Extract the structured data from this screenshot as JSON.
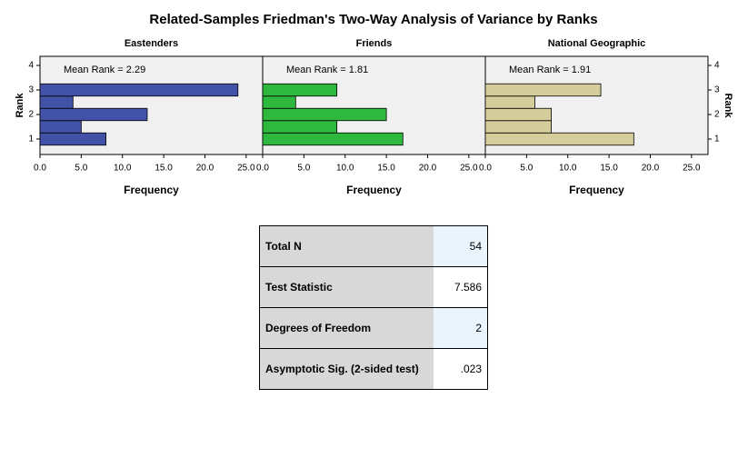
{
  "title": "Related-Samples Friedman's Two-Way Analysis of Variance by Ranks",
  "chart_data": [
    {
      "type": "histogram",
      "orientation": "horizontal",
      "title": "Eastenders",
      "annotation": "Mean Rank = 2.29",
      "bins": [
        0.75,
        1.25,
        1.75,
        2.25,
        2.75,
        3.25
      ],
      "values": [
        8,
        5,
        13,
        4,
        24
      ],
      "color": "#4152a8",
      "xlim": [
        0,
        27
      ],
      "xticks": [
        {
          "value": 0,
          "label": "0.0"
        },
        {
          "value": 5,
          "label": "5.0"
        },
        {
          "value": 10,
          "label": "10.0"
        },
        {
          "value": 15,
          "label": "15.0"
        },
        {
          "value": 20,
          "label": "20.0"
        },
        {
          "value": 25,
          "label": "25.0"
        }
      ],
      "xlabel": "Frequency",
      "ylim": [
        0.37,
        4.37
      ],
      "yticks": [
        1,
        2,
        3,
        4
      ],
      "ylabel": "Rank",
      "yaxis": "left"
    },
    {
      "type": "histogram",
      "orientation": "horizontal",
      "title": "Friends",
      "annotation": "Mean Rank = 1.81",
      "bins": [
        0.75,
        1.25,
        1.75,
        2.25,
        2.75,
        3.25
      ],
      "values": [
        17,
        9,
        15,
        4,
        9
      ],
      "color": "#2fb83e",
      "xlim": [
        0,
        27
      ],
      "xticks": [
        {
          "value": 0,
          "label": "0.0"
        },
        {
          "value": 5,
          "label": "5.0"
        },
        {
          "value": 10,
          "label": "10.0"
        },
        {
          "value": 15,
          "label": "15.0"
        },
        {
          "value": 20,
          "label": "20.0"
        },
        {
          "value": 25,
          "label": "25.0"
        }
      ],
      "xlabel": "Frequency",
      "ylim": [
        0.37,
        4.37
      ]
    },
    {
      "type": "histogram",
      "orientation": "horizontal",
      "title": "National Geographic",
      "annotation": "Mean Rank = 1.91",
      "bins": [
        0.75,
        1.25,
        1.75,
        2.25,
        2.75,
        3.25
      ],
      "values": [
        18,
        8,
        8,
        6,
        14
      ],
      "color": "#d6cd9c",
      "xlim": [
        0,
        27
      ],
      "xticks": [
        {
          "value": 0,
          "label": "0.0"
        },
        {
          "value": 5,
          "label": "5.0"
        },
        {
          "value": 10,
          "label": "10.0"
        },
        {
          "value": 15,
          "label": "15.0"
        },
        {
          "value": 20,
          "label": "20.0"
        },
        {
          "value": 25,
          "label": "25.0"
        }
      ],
      "xlabel": "Frequency",
      "ylim": [
        0.37,
        4.37
      ],
      "yticks": [
        1,
        2,
        3,
        4
      ],
      "ylabel": "Rank",
      "yaxis": "right"
    }
  ],
  "table": {
    "rows": [
      [
        "Total N",
        "54"
      ],
      [
        "Test Statistic",
        "7.586"
      ],
      [
        "Degrees of Freedom",
        "2"
      ],
      [
        "Asymptotic Sig. (2-sided test)",
        ".023"
      ]
    ]
  }
}
